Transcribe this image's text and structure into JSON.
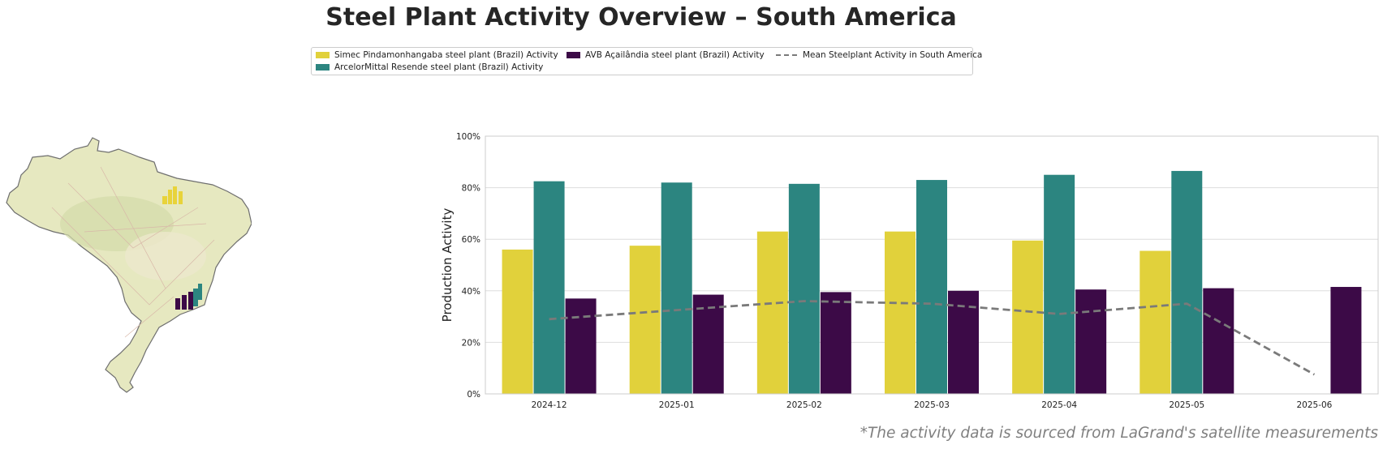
{
  "title": "Steel Plant Activity Overview – South America",
  "footnote": "*The activity data is sourced from LaGrand's satellite measurements",
  "legend": {
    "simec": "Simec Pindamonhangaba steel plant (Brazil) Activity",
    "arcelor": "ArcelorMittal Resende steel plant (Brazil) Activity",
    "avb": "AVB Açailândia steel plant (Brazil) Activity",
    "mean": "Mean Steelplant Activity in South America"
  },
  "colors": {
    "simec": "#e1d13b",
    "arcelor": "#2c8580",
    "avb": "#3c0a47",
    "mean": "#7a7a7a"
  },
  "map": {
    "icons": [
      "factory-icon",
      "factory-icon",
      "factory-icon"
    ]
  },
  "chart_data": {
    "type": "bar",
    "ylabel": "Production Activity",
    "xlabel": "",
    "ylim": [
      0,
      100
    ],
    "yticks": [
      "0%",
      "20%",
      "40%",
      "60%",
      "80%",
      "100%"
    ],
    "categories": [
      "2024-12",
      "2025-01",
      "2025-02",
      "2025-03",
      "2025-04",
      "2025-05",
      "2025-06"
    ],
    "series": [
      {
        "name": "Simec Pindamonhangaba steel plant (Brazil) Activity",
        "values": [
          56,
          57.5,
          63,
          63,
          59.5,
          55.5,
          null
        ]
      },
      {
        "name": "ArcelorMittal Resende steel plant (Brazil) Activity",
        "values": [
          82.5,
          82,
          81.5,
          83,
          85,
          86.5,
          null
        ]
      },
      {
        "name": "AVB Açailândia steel plant (Brazil) Activity",
        "values": [
          37,
          38.5,
          39.5,
          40,
          40.5,
          41,
          41.5
        ]
      }
    ],
    "line": {
      "name": "Mean Steelplant Activity in South America",
      "values": [
        29,
        32.5,
        36,
        35,
        31,
        35,
        7.5
      ]
    },
    "grid": true,
    "legend_position": "top-center"
  }
}
